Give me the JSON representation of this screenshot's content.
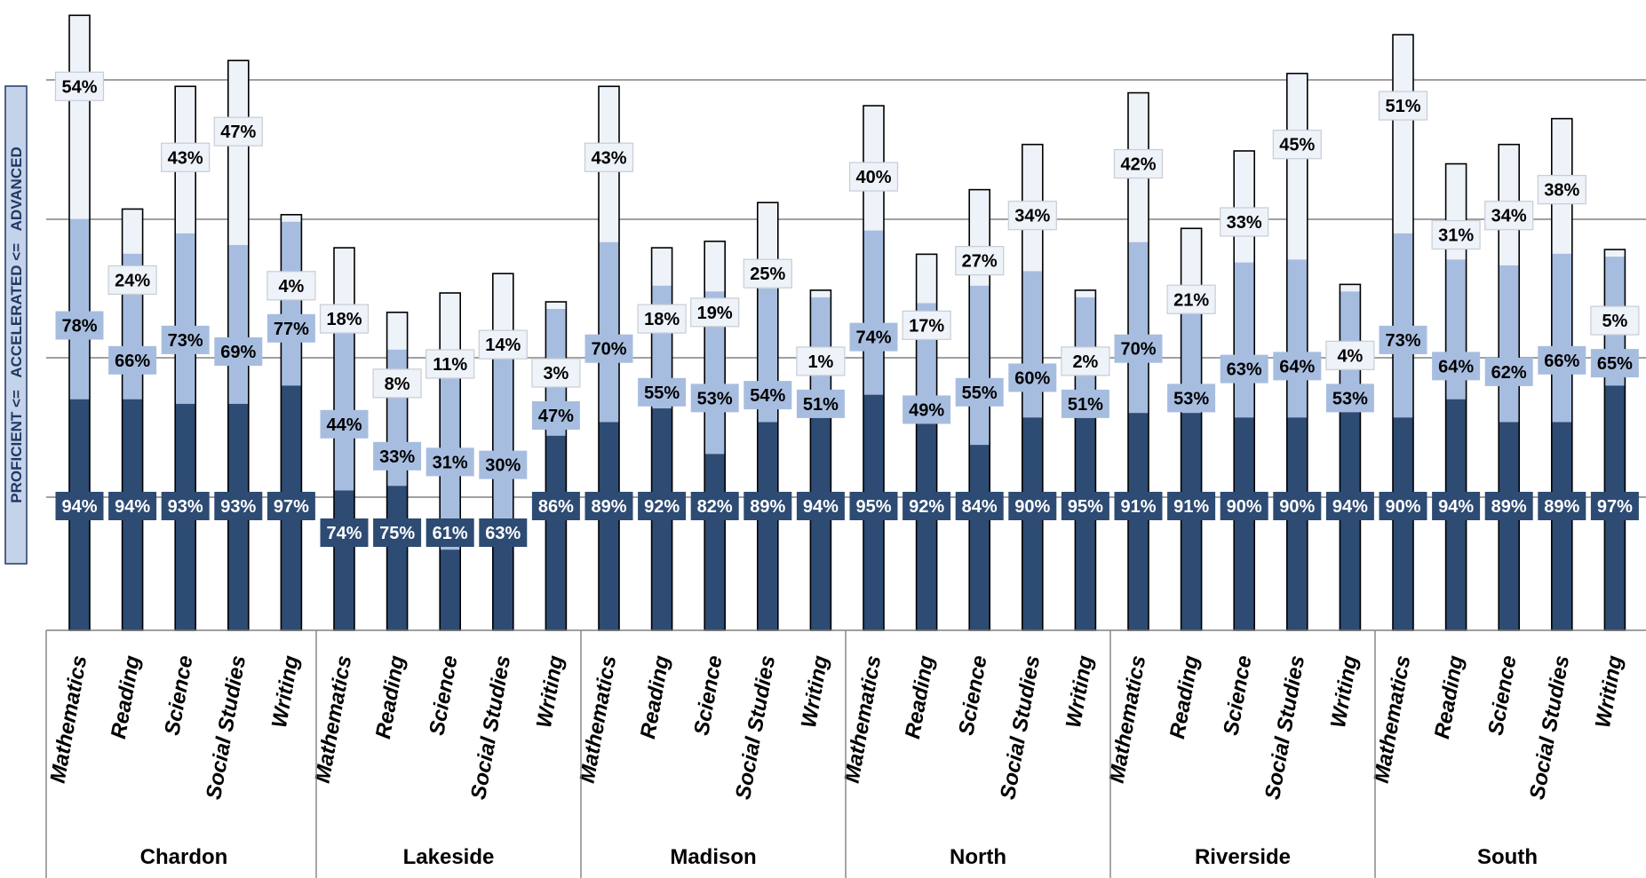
{
  "y_axis_label": "PROFICIENT <=   ACCELERATED <=   ADVANCED",
  "colors": {
    "proficient": "#2d4b73",
    "accelerated": "#a7bde0",
    "advanced": "#eef2f9",
    "label_proficient_bg": "#2d4b73",
    "label_accelerated_bg": "#a7bde0",
    "label_advanced_bg": "#eef2f9"
  },
  "chart_data": {
    "type": "bar",
    "layout": "overlapping cumulative bars grouped by school",
    "groups": [
      "Chardon",
      "Lakeside",
      "Madison",
      "North",
      "Riverside",
      "South"
    ],
    "subjects": [
      "Mathematics",
      "Reading",
      "Science",
      "Social Studies",
      "Writing"
    ],
    "series": [
      {
        "name": "PROFICIENT",
        "values": [
          [
            94,
            94,
            93,
            93,
            97
          ],
          [
            74,
            75,
            61,
            63,
            86
          ],
          [
            89,
            92,
            82,
            89,
            94
          ],
          [
            95,
            92,
            84,
            90,
            95
          ],
          [
            91,
            91,
            90,
            90,
            94
          ],
          [
            90,
            94,
            89,
            89,
            97
          ]
        ]
      },
      {
        "name": "ACCELERATED",
        "values": [
          [
            78,
            66,
            73,
            69,
            77
          ],
          [
            44,
            33,
            31,
            30,
            47
          ],
          [
            70,
            55,
            53,
            54,
            51
          ],
          [
            74,
            49,
            55,
            60,
            51
          ],
          [
            70,
            53,
            63,
            64,
            53
          ],
          [
            73,
            64,
            62,
            66,
            65
          ]
        ]
      },
      {
        "name": "ADVANCED",
        "values": [
          [
            54,
            24,
            43,
            47,
            4
          ],
          [
            18,
            8,
            11,
            14,
            3
          ],
          [
            43,
            18,
            19,
            25,
            1
          ],
          [
            40,
            17,
            27,
            34,
            2
          ],
          [
            42,
            21,
            33,
            45,
            4
          ],
          [
            51,
            31,
            34,
            38,
            5
          ]
        ]
      }
    ],
    "value_suffix": "%",
    "grid": true
  }
}
